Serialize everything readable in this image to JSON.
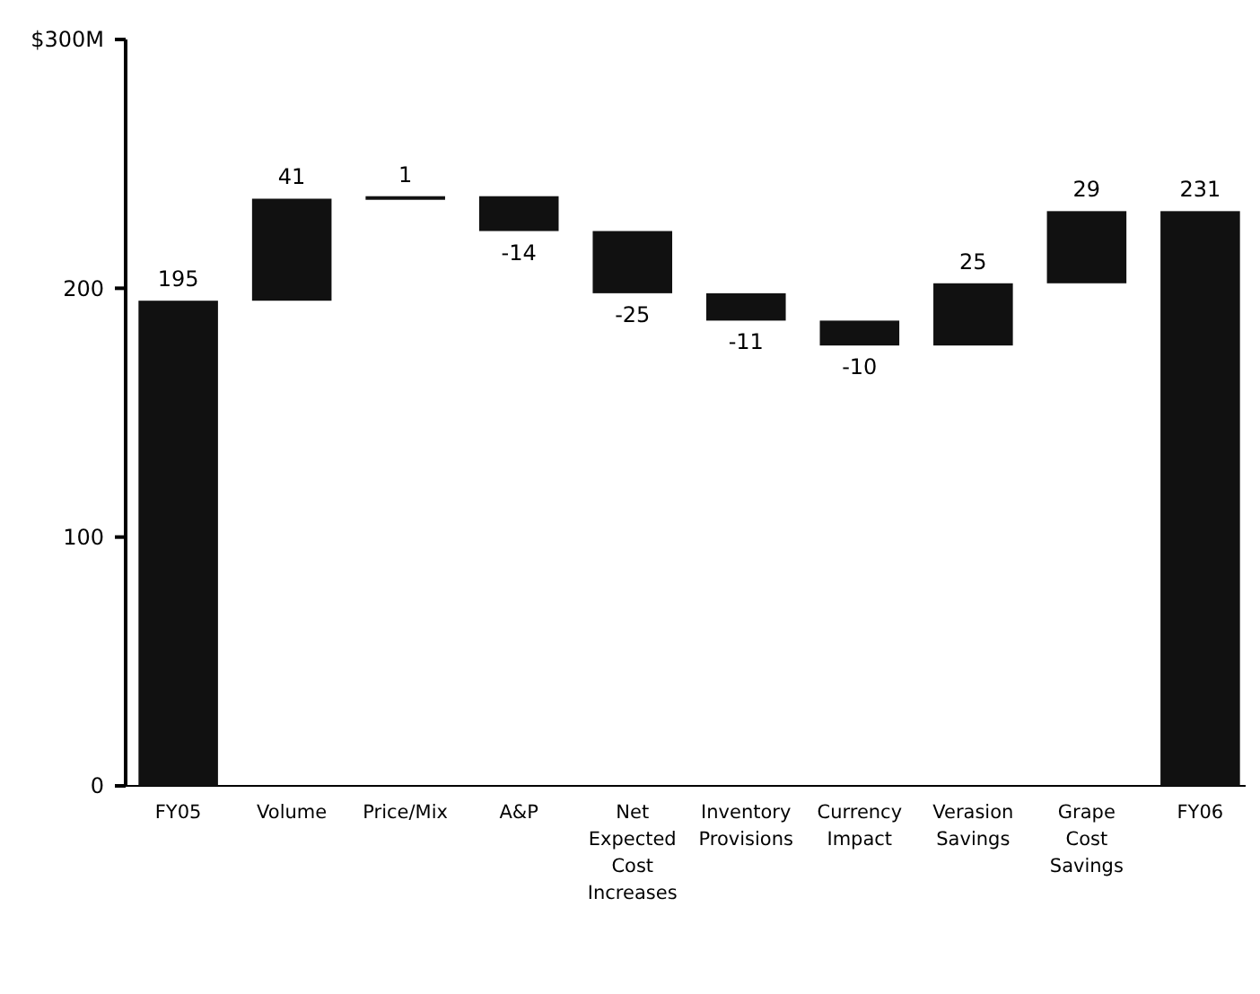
{
  "chart_data": {
    "type": "bar",
    "categories": [
      "FY05",
      "Volume",
      "Price/Mix",
      "A&P",
      "Net Expected Cost Increases",
      "Inventory Provisions",
      "Currency Impact",
      "Verasion Savings",
      "Grape Cost Savings",
      "FY06"
    ],
    "values": [
      195,
      41,
      1,
      -14,
      -25,
      -11,
      -10,
      25,
      29,
      231
    ],
    "base": [
      0,
      195,
      236,
      237,
      223,
      198,
      187,
      177,
      202,
      0
    ],
    "color": "#111111",
    "ylim": [
      0,
      300
    ],
    "yticks": [
      0,
      100,
      200,
      {
        "value": 300,
        "label": "$300M"
      }
    ],
    "data_labels": true,
    "grid": false
  }
}
